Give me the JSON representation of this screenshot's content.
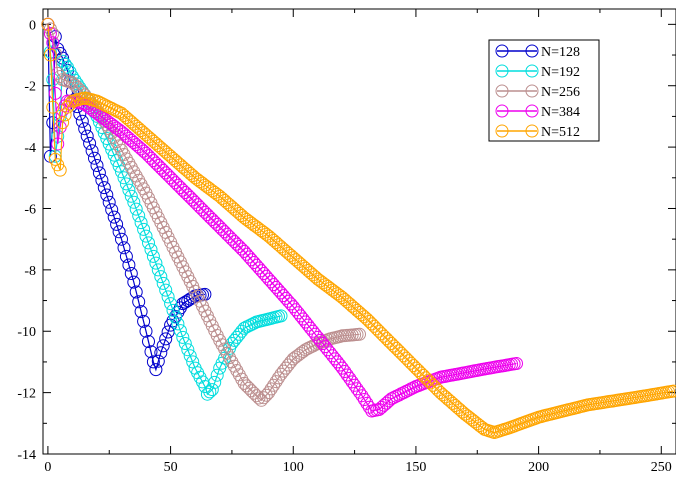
{
  "chart_data": {
    "type": "line",
    "title": "",
    "xlabel": "",
    "ylabel": "",
    "xlim": [
      -2,
      256
    ],
    "ylim": [
      -14,
      0.5
    ],
    "x_ticks": [
      0,
      50,
      100,
      150,
      200,
      250
    ],
    "x_tick_labels": [
      "0",
      "50",
      "100",
      "150",
      "200",
      "250"
    ],
    "y_ticks": [
      0,
      -2,
      -4,
      -6,
      -8,
      -10,
      -12,
      -14
    ],
    "y_tick_labels": [
      "0",
      "-2",
      "-4",
      "-6",
      "-8",
      "-10",
      "-12",
      "-14"
    ],
    "grid": false,
    "legend_position": "top-right",
    "markers": "open-circle",
    "series": [
      {
        "name": "N=128",
        "color": "#0000cc",
        "points": [
          [
            0,
            0
          ],
          [
            1,
            -4.3
          ],
          [
            2,
            -3.2
          ],
          [
            3,
            -0.4
          ],
          [
            4,
            -0.8
          ],
          [
            6,
            -1.1
          ],
          [
            8,
            -1.5
          ],
          [
            10,
            -2.2
          ],
          [
            15,
            -3.4
          ],
          [
            20,
            -4.6
          ],
          [
            25,
            -5.8
          ],
          [
            30,
            -7.0
          ],
          [
            35,
            -8.4
          ],
          [
            40,
            -10.0
          ],
          [
            43,
            -11.0
          ],
          [
            44,
            -11.25
          ],
          [
            46,
            -10.7
          ],
          [
            50,
            -9.8
          ],
          [
            55,
            -9.1
          ],
          [
            60,
            -8.85
          ],
          [
            64,
            -8.8
          ]
        ]
      },
      {
        "name": "N=192",
        "color": "#00dddd",
        "points": [
          [
            0,
            0
          ],
          [
            2,
            -1.8
          ],
          [
            3,
            -4.3
          ],
          [
            5,
            -3.0
          ],
          [
            6,
            -1.2
          ],
          [
            8,
            -1.4
          ],
          [
            10,
            -1.7
          ],
          [
            15,
            -2.3
          ],
          [
            20,
            -3.0
          ],
          [
            25,
            -3.9
          ],
          [
            30,
            -4.8
          ],
          [
            35,
            -5.8
          ],
          [
            40,
            -6.9
          ],
          [
            45,
            -8.0
          ],
          [
            50,
            -9.1
          ],
          [
            55,
            -10.2
          ],
          [
            60,
            -11.2
          ],
          [
            64,
            -11.8
          ],
          [
            65,
            -12.05
          ],
          [
            67,
            -11.9
          ],
          [
            70,
            -11.2
          ],
          [
            75,
            -10.4
          ],
          [
            80,
            -9.9
          ],
          [
            85,
            -9.7
          ],
          [
            90,
            -9.6
          ],
          [
            95,
            -9.5
          ]
        ]
      },
      {
        "name": "N=256",
        "color": "#bc8f8f",
        "points": [
          [
            0,
            0
          ],
          [
            2,
            -0.3
          ],
          [
            4,
            -1.6
          ],
          [
            6,
            -1.8
          ],
          [
            10,
            -1.9
          ],
          [
            15,
            -2.3
          ],
          [
            20,
            -2.8
          ],
          [
            25,
            -3.4
          ],
          [
            30,
            -4.1
          ],
          [
            35,
            -4.8
          ],
          [
            40,
            -5.5
          ],
          [
            45,
            -6.3
          ],
          [
            50,
            -7.1
          ],
          [
            55,
            -7.9
          ],
          [
            60,
            -8.7
          ],
          [
            65,
            -9.5
          ],
          [
            70,
            -10.3
          ],
          [
            75,
            -11.0
          ],
          [
            80,
            -11.7
          ],
          [
            85,
            -12.1
          ],
          [
            87,
            -12.25
          ],
          [
            90,
            -12.0
          ],
          [
            95,
            -11.4
          ],
          [
            100,
            -10.9
          ],
          [
            105,
            -10.6
          ],
          [
            110,
            -10.4
          ],
          [
            115,
            -10.25
          ],
          [
            120,
            -10.15
          ],
          [
            127,
            -10.1
          ]
        ]
      },
      {
        "name": "N=384",
        "color": "#ee00ee",
        "points": [
          [
            0,
            0
          ],
          [
            2,
            -0.6
          ],
          [
            4,
            -3.9
          ],
          [
            6,
            -2.8
          ],
          [
            8,
            -2.5
          ],
          [
            10,
            -2.5
          ],
          [
            15,
            -2.6
          ],
          [
            20,
            -2.9
          ],
          [
            30,
            -3.5
          ],
          [
            40,
            -4.2
          ],
          [
            50,
            -5.0
          ],
          [
            60,
            -5.8
          ],
          [
            70,
            -6.6
          ],
          [
            80,
            -7.4
          ],
          [
            90,
            -8.3
          ],
          [
            100,
            -9.2
          ],
          [
            110,
            -10.2
          ],
          [
            120,
            -11.2
          ],
          [
            128,
            -12.1
          ],
          [
            132,
            -12.6
          ],
          [
            135,
            -12.55
          ],
          [
            140,
            -12.2
          ],
          [
            150,
            -11.8
          ],
          [
            160,
            -11.5
          ],
          [
            170,
            -11.35
          ],
          [
            180,
            -11.2
          ],
          [
            191,
            -11.05
          ]
        ]
      },
      {
        "name": "N=512",
        "color": "#ffa500",
        "points": [
          [
            0,
            0
          ],
          [
            1,
            -1.0
          ],
          [
            3,
            -4.4
          ],
          [
            5,
            -4.75
          ],
          [
            6,
            -3.2
          ],
          [
            8,
            -2.7
          ],
          [
            10,
            -2.5
          ],
          [
            15,
            -2.4
          ],
          [
            20,
            -2.5
          ],
          [
            30,
            -2.9
          ],
          [
            40,
            -3.6
          ],
          [
            50,
            -4.3
          ],
          [
            60,
            -5.0
          ],
          [
            70,
            -5.6
          ],
          [
            80,
            -6.3
          ],
          [
            90,
            -6.9
          ],
          [
            100,
            -7.6
          ],
          [
            110,
            -8.3
          ],
          [
            120,
            -8.9
          ],
          [
            130,
            -9.6
          ],
          [
            140,
            -10.4
          ],
          [
            150,
            -11.2
          ],
          [
            160,
            -12.0
          ],
          [
            170,
            -12.7
          ],
          [
            178,
            -13.2
          ],
          [
            182,
            -13.3
          ],
          [
            188,
            -13.15
          ],
          [
            200,
            -12.8
          ],
          [
            220,
            -12.4
          ],
          [
            240,
            -12.15
          ],
          [
            255,
            -11.95
          ]
        ]
      }
    ]
  }
}
